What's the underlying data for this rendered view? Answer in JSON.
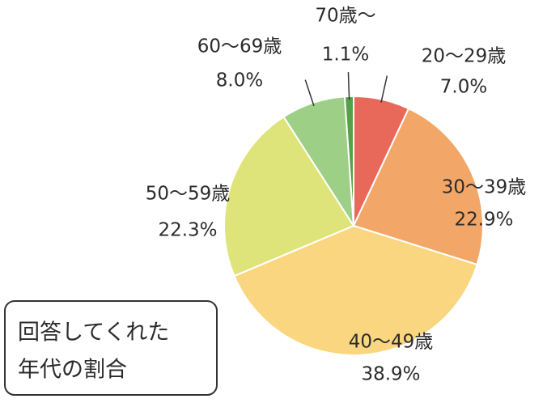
{
  "chart_data": {
    "type": "pie",
    "title": [
      "回答してくれた",
      "年代の割合"
    ],
    "categories": [
      "20～29歳",
      "30～39歳",
      "40～49歳",
      "50～59歳",
      "60～69歳",
      "70歳～"
    ],
    "values": [
      7.0,
      22.9,
      38.9,
      22.3,
      8.0,
      1.1
    ],
    "value_labels": [
      "7.0%",
      "22.9%",
      "38.9%",
      "22.3%",
      "8.0%",
      "1.1%"
    ],
    "colors": [
      "#e8695a",
      "#f2a768",
      "#f9d67f",
      "#dfe47a",
      "#9dcf87",
      "#55a048"
    ]
  }
}
